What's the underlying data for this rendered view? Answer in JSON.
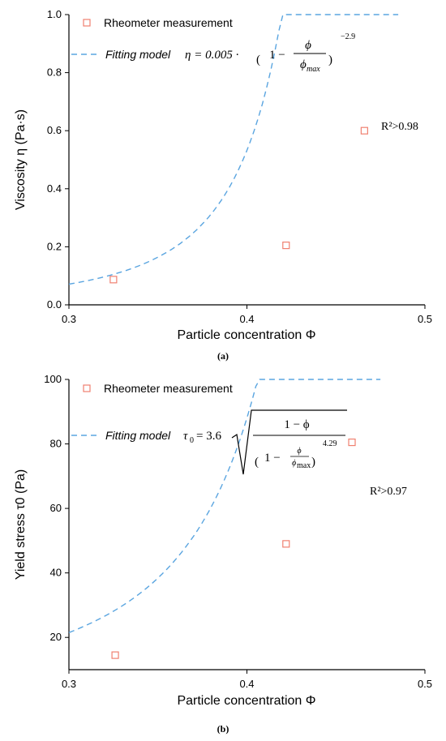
{
  "colors": {
    "marker": "#f08070",
    "fit": "#5aa5e0"
  },
  "chart_data": [
    {
      "type": "scatter",
      "caption": "(a)",
      "xlabel": "Particle concentration Φ",
      "ylabel": "Viscosity η (Pa·s)",
      "xlim": [
        0.3,
        0.5
      ],
      "ylim": [
        0.0,
        1.0
      ],
      "xticks": [
        "0.3",
        "0.4",
        "0.5"
      ],
      "yticks": [
        "0.0",
        "0.2",
        "0.4",
        "0.6",
        "0.8",
        "1.0"
      ],
      "legend": {
        "marker_label": "Rheometer measurement",
        "fit_label": "Fitting model"
      },
      "formula": {
        "lhs": "η = 0.005 ·",
        "paren_inner": "1 −",
        "numerator": "ϕ",
        "denominator": "ϕ",
        "denominator_sub": "max",
        "exponent": "−2.9"
      },
      "r2": "R²>0.98",
      "series": [
        {
          "name": "Rheometer measurement",
          "x": [
            0.325,
            0.422,
            0.466
          ],
          "y": [
            0.087,
            0.205,
            0.6
          ]
        },
        {
          "name": "Fitting model",
          "model": "eta",
          "coef": 0.005,
          "phi_max": 0.5,
          "exponent": -2.9,
          "x_range": [
            0.3,
            0.485
          ]
        }
      ]
    },
    {
      "type": "scatter",
      "caption": "(b)",
      "xlabel": "Particle concentration Φ",
      "ylabel": "Yield stress τ0 (Pa)",
      "xlim": [
        0.3,
        0.5
      ],
      "ylim": [
        10,
        100
      ],
      "xticks": [
        "0.3",
        "0.4",
        "0.5"
      ],
      "yticks": [
        "20",
        "40",
        "60",
        "80",
        "100"
      ],
      "legend": {
        "marker_label": "Rheometer measurement",
        "fit_label": "Fitting model"
      },
      "formula": {
        "lhs": "τ",
        "lhs_sub": "0",
        "eq": "= 3.6",
        "numerator": "1 − ϕ",
        "den_inner": "1 −",
        "den_num": "ϕ",
        "den_den": "ϕ",
        "den_den_sub": "max",
        "exponent": "4.29"
      },
      "r2": "R²>0.97",
      "series": [
        {
          "name": "Rheometer measurement",
          "x": [
            0.326,
            0.422,
            0.459
          ],
          "y": [
            14.5,
            49,
            80.5
          ]
        },
        {
          "name": "Fitting model",
          "model": "tau",
          "coef": 3.6,
          "phi_max": 0.5,
          "exponent": 4.29,
          "x_range": [
            0.3,
            0.475
          ]
        }
      ]
    }
  ]
}
